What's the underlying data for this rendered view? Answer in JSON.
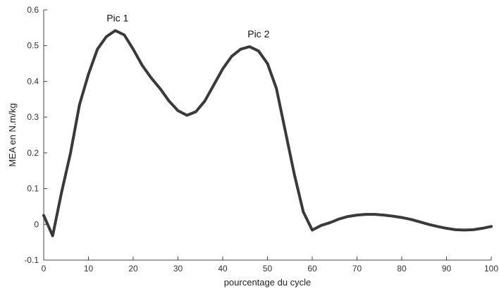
{
  "chart_data": {
    "type": "line",
    "title": "",
    "xlabel": "pourcentage du cycle",
    "ylabel": "MEA en N.m/kg",
    "xlim": [
      0,
      100
    ],
    "ylim": [
      -0.1,
      0.6
    ],
    "xticks": [
      0,
      10,
      20,
      30,
      40,
      50,
      60,
      70,
      80,
      90,
      100
    ],
    "yticks": [
      -0.1,
      0,
      0.1,
      0.2,
      0.3,
      0.4,
      0.5,
      0.6
    ],
    "ytick_labels": [
      "-0.1",
      "0",
      "0.1",
      "0.2",
      "0.3",
      "0.4",
      "0.5",
      "0.6"
    ],
    "grid": false,
    "line_color": "#3a3a3a",
    "series": [
      {
        "x": [
          0,
          2,
          4,
          6,
          8,
          10,
          12,
          14,
          16,
          18,
          20,
          22,
          24,
          26,
          28,
          30,
          32,
          34,
          36,
          38,
          40,
          42,
          44,
          46,
          48,
          50,
          52,
          54,
          56,
          58,
          60,
          62,
          64,
          66,
          68,
          70,
          72,
          74,
          76,
          78,
          80,
          82,
          84,
          86,
          88,
          90,
          92,
          94,
          96,
          98,
          100
        ],
        "values": [
          0.025,
          -0.032,
          0.09,
          0.2,
          0.335,
          0.42,
          0.49,
          0.525,
          0.542,
          0.53,
          0.49,
          0.445,
          0.41,
          0.38,
          0.345,
          0.318,
          0.305,
          0.315,
          0.345,
          0.39,
          0.435,
          0.47,
          0.49,
          0.497,
          0.485,
          0.45,
          0.38,
          0.26,
          0.14,
          0.035,
          -0.016,
          -0.003,
          0.005,
          0.015,
          0.022,
          0.026,
          0.028,
          0.028,
          0.026,
          0.023,
          0.019,
          0.014,
          0.007,
          0.0,
          -0.006,
          -0.011,
          -0.015,
          -0.016,
          -0.015,
          -0.011,
          -0.006
        ]
      }
    ],
    "annotations": [
      {
        "text": "Pic 1",
        "x": 16.5,
        "y": 0.542
      },
      {
        "text": "Pic 2",
        "x": 48,
        "y": 0.497
      }
    ]
  }
}
